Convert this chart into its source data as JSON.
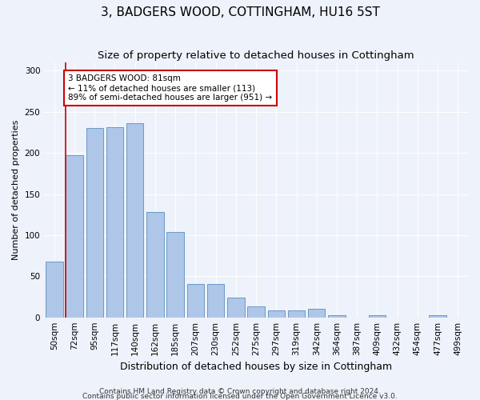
{
  "title1": "3, BADGERS WOOD, COTTINGHAM, HU16 5ST",
  "title2": "Size of property relative to detached houses in Cottingham",
  "xlabel": "Distribution of detached houses by size in Cottingham",
  "ylabel": "Number of detached properties",
  "categories": [
    "50sqm",
    "72sqm",
    "95sqm",
    "117sqm",
    "140sqm",
    "162sqm",
    "185sqm",
    "207sqm",
    "230sqm",
    "252sqm",
    "275sqm",
    "297sqm",
    "319sqm",
    "342sqm",
    "364sqm",
    "387sqm",
    "409sqm",
    "432sqm",
    "454sqm",
    "477sqm",
    "499sqm"
  ],
  "values": [
    68,
    197,
    230,
    231,
    236,
    128,
    104,
    41,
    41,
    24,
    13,
    8,
    8,
    10,
    3,
    0,
    3,
    0,
    0,
    3,
    0
  ],
  "bar_color": "#aec6e8",
  "bar_edge_color": "#5a8fc2",
  "vline_x_idx": 1,
  "vline_color": "#cc0000",
  "annotation_text": "3 BADGERS WOOD: 81sqm\n← 11% of detached houses are smaller (113)\n89% of semi-detached houses are larger (951) →",
  "annotation_box_color": "#ffffff",
  "annotation_box_edge": "#cc0000",
  "ylim": [
    0,
    310
  ],
  "yticks": [
    0,
    50,
    100,
    150,
    200,
    250,
    300
  ],
  "footnote1": "Contains HM Land Registry data © Crown copyright and database right 2024.",
  "footnote2": "Contains public sector information licensed under the Open Government Licence v3.0.",
  "bg_color": "#eef2fa",
  "plot_bg_color": "#eef2fa",
  "title1_fontsize": 11,
  "title2_fontsize": 9.5,
  "xlabel_fontsize": 9,
  "ylabel_fontsize": 8,
  "tick_fontsize": 7.5,
  "footnote_fontsize": 6.5
}
